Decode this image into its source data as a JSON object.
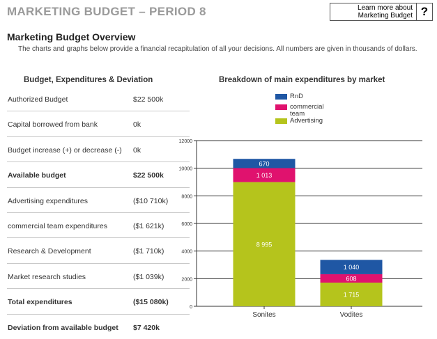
{
  "header": {
    "title": "MARKETING BUDGET – PERIOD 8",
    "help_text_line1": "Learn more about",
    "help_text_line2": "Marketing Budget",
    "help_icon": "question-mark-icon",
    "help_glyph": "?"
  },
  "overview": {
    "title": "Marketing Budget Overview",
    "description": "The charts and graphs below provide a financial recapitulation of all your decisions. All numbers are given in thousands of dollars."
  },
  "budget_table": {
    "heading": "Budget, Expenditures & Deviation",
    "rows": [
      {
        "label": "Authorized Budget",
        "value": "$22 500k",
        "bold": false
      },
      {
        "label": "Capital borrowed from bank",
        "value": "0k",
        "bold": false
      },
      {
        "label": "Budget increase (+) or decrease (-)",
        "value": "0k",
        "bold": false
      },
      {
        "label": "Available budget",
        "value": "$22 500k",
        "bold": true
      },
      {
        "label": "Advertising expenditures",
        "value": "($10 710k)",
        "bold": false
      },
      {
        "label": "commercial team expenditures",
        "value": "($1 621k)",
        "bold": false
      },
      {
        "label": "Research & Development",
        "value": "($1 710k)",
        "bold": false
      },
      {
        "label": "Market research studies",
        "value": "($1 039k)",
        "bold": false
      },
      {
        "label": "Total expenditures",
        "value": "($15 080k)",
        "bold": true
      },
      {
        "label": "Deviation from available budget",
        "value": "$7 420k",
        "bold": true
      }
    ]
  },
  "chart_data": {
    "type": "bar",
    "stacked": true,
    "title": "Breakdown of main expenditures by market",
    "categories": [
      "Sonites",
      "Vodites"
    ],
    "series": [
      {
        "name": "Advertising",
        "color": "#b5c41c",
        "values": [
          8995,
          1715
        ],
        "labels": [
          "8 995",
          "1 715"
        ]
      },
      {
        "name": "commercial team",
        "color": "#e0126e",
        "values": [
          1013,
          608
        ],
        "labels": [
          "1 013",
          "608"
        ]
      },
      {
        "name": "RnD",
        "color": "#1f57a4",
        "values": [
          670,
          1040
        ],
        "labels": [
          "670",
          "1 040"
        ]
      }
    ],
    "legend_order": [
      "RnD",
      "commercial team",
      "Advertising"
    ],
    "ylim": [
      0,
      12000
    ],
    "yticks": [
      0,
      2000,
      4000,
      6000,
      8000,
      10000,
      12000
    ],
    "grid": true,
    "legend_position": "top"
  }
}
